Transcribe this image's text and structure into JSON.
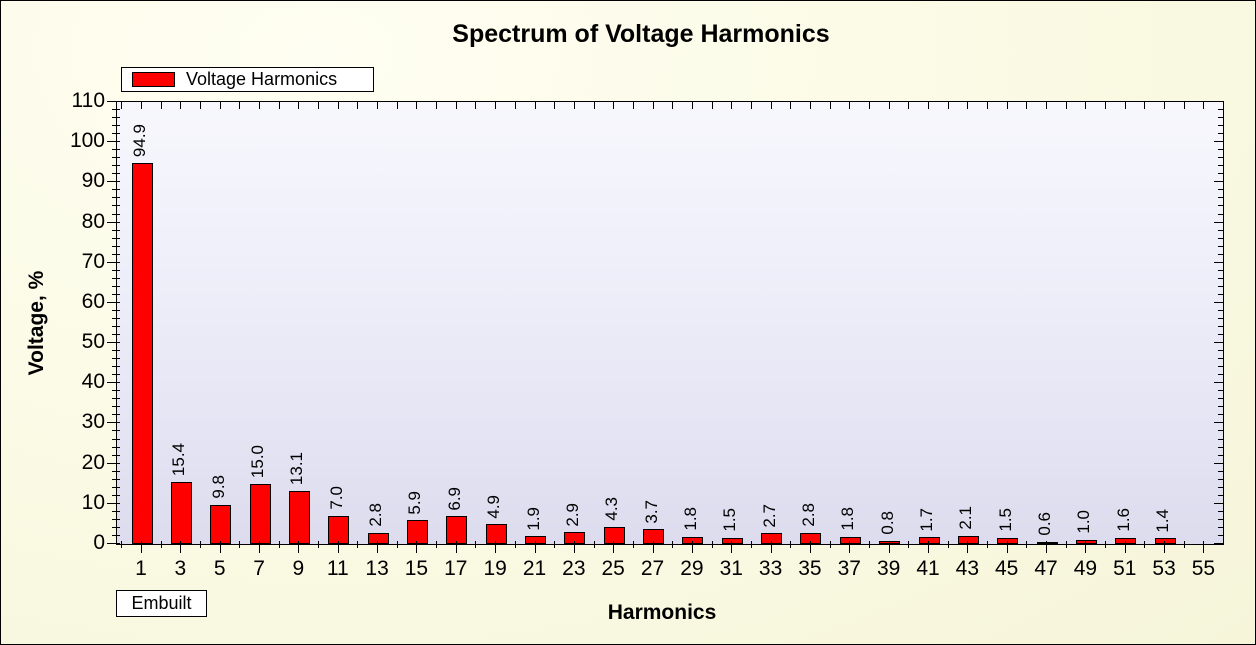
{
  "title": "Spectrum of Voltage Harmonics",
  "legend": {
    "label": "Voltage Harmonics",
    "swatch_color": "#ff0000"
  },
  "footer_badge": "Embuilt",
  "colors": {
    "bar_fill": "#ff0000",
    "bar_border": "#000000",
    "outer_background": "#fafae4",
    "plot_background_top": "#f7f7fd",
    "plot_background_bottom": "#dcdcee",
    "axis": "#000000",
    "text": "#000000"
  },
  "chart_data": {
    "type": "bar",
    "title": "Spectrum of Voltage Harmonics",
    "xlabel": "Harmonics",
    "ylabel": "Voltage, %",
    "categories": [
      1,
      3,
      5,
      7,
      9,
      11,
      13,
      15,
      17,
      19,
      21,
      23,
      25,
      27,
      29,
      31,
      33,
      35,
      37,
      39,
      41,
      43,
      45,
      47,
      49,
      51,
      53,
      55
    ],
    "series": [
      {
        "name": "Voltage Harmonics",
        "values": [
          94.9,
          15.4,
          9.8,
          15.0,
          13.1,
          7.0,
          2.8,
          5.9,
          6.9,
          4.9,
          1.9,
          2.9,
          4.3,
          3.7,
          1.8,
          1.5,
          2.7,
          2.8,
          1.8,
          0.8,
          1.7,
          2.1,
          1.5,
          0.6,
          1.0,
          1.6,
          1.4,
          null
        ]
      }
    ],
    "value_label_decimals": 1,
    "ylim": [
      0,
      110
    ],
    "y_major_step": 10,
    "y_minor_step": 2,
    "x_minor_step": 1,
    "grid": false,
    "legend_position": "top-left",
    "bar_color": "#ff0000"
  }
}
